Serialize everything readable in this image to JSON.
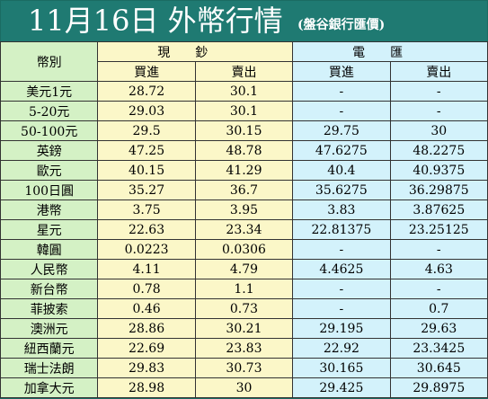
{
  "header": {
    "title": "11月16日 外幣行情",
    "source": "(盤谷銀行匯價)"
  },
  "table": {
    "currency_header": "幣別",
    "cash_header": "現鈔",
    "spot_header": "電匯",
    "buy_label": "買進",
    "sell_label": "賣出",
    "rows": [
      {
        "currency": "美元1元",
        "cash_buy": "28.72",
        "cash_sell": "30.1",
        "spot_buy": "-",
        "spot_sell": "-"
      },
      {
        "currency": "5-20元",
        "cash_buy": "29.03",
        "cash_sell": "30.1",
        "spot_buy": "-",
        "spot_sell": "-"
      },
      {
        "currency": "50-100元",
        "cash_buy": "29.5",
        "cash_sell": "30.15",
        "spot_buy": "29.75",
        "spot_sell": "30"
      },
      {
        "currency": "英鎊",
        "cash_buy": "47.25",
        "cash_sell": "48.78",
        "spot_buy": "47.6275",
        "spot_sell": "48.2275"
      },
      {
        "currency": "歐元",
        "cash_buy": "40.15",
        "cash_sell": "41.29",
        "spot_buy": "40.4",
        "spot_sell": "40.9375"
      },
      {
        "currency": "100日圓",
        "cash_buy": "35.27",
        "cash_sell": "36.7",
        "spot_buy": "35.6275",
        "spot_sell": "36.29875"
      },
      {
        "currency": "港幣",
        "cash_buy": "3.75",
        "cash_sell": "3.95",
        "spot_buy": "3.83",
        "spot_sell": "3.87625"
      },
      {
        "currency": "星元",
        "cash_buy": "22.63",
        "cash_sell": "23.34",
        "spot_buy": "22.81375",
        "spot_sell": "23.25125"
      },
      {
        "currency": "韓圓",
        "cash_buy": "0.0223",
        "cash_sell": "0.0306",
        "spot_buy": "-",
        "spot_sell": "-"
      },
      {
        "currency": "人民幣",
        "cash_buy": "4.11",
        "cash_sell": "4.79",
        "spot_buy": "4.4625",
        "spot_sell": "4.63"
      },
      {
        "currency": "新台幣",
        "cash_buy": "0.78",
        "cash_sell": "1.1",
        "spot_buy": "-",
        "spot_sell": "-"
      },
      {
        "currency": "菲披索",
        "cash_buy": "0.46",
        "cash_sell": "0.73",
        "spot_buy": "-",
        "spot_sell": "0.7"
      },
      {
        "currency": "澳洲元",
        "cash_buy": "28.86",
        "cash_sell": "30.21",
        "spot_buy": "29.195",
        "spot_sell": "29.63"
      },
      {
        "currency": "紐西蘭元",
        "cash_buy": "22.69",
        "cash_sell": "23.83",
        "spot_buy": "22.92",
        "spot_sell": "23.3425"
      },
      {
        "currency": "瑞士法朗",
        "cash_buy": "29.83",
        "cash_sell": "30.73",
        "spot_buy": "30.165",
        "spot_sell": "30.645"
      },
      {
        "currency": "加拿大元",
        "cash_buy": "28.98",
        "cash_sell": "30",
        "spot_buy": "29.425",
        "spot_sell": "29.8975"
      }
    ]
  }
}
